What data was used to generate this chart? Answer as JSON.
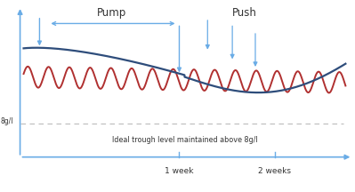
{
  "bg_color": "#ffffff",
  "axis_color": "#6aace6",
  "blue_curve_color": "#2e4d7b",
  "red_wave_color": "#b03030",
  "dashed_line_color": "#bbbbbb",
  "annotation_color": "#6aace6",
  "text_color": "#333333",
  "pump_label": "Pump",
  "push_label": "Push",
  "trough_label": "Ideal trough level maintained above 8g/l",
  "ylabel_label": "8g/l",
  "x_tick1_label": "1 week",
  "x_tick2_label": "2 weeks"
}
